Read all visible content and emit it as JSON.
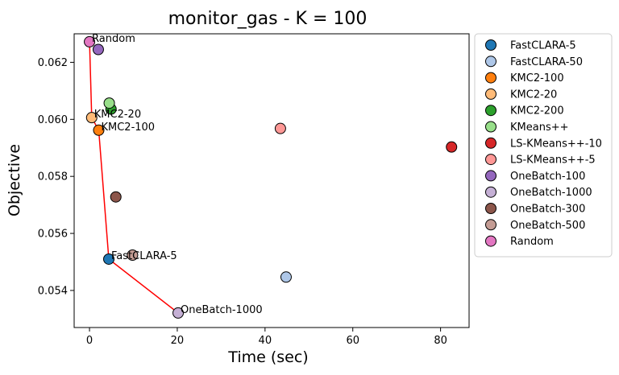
{
  "chart_data": {
    "type": "scatter",
    "title": "monitor_gas - K = 100",
    "xlabel": "Time (sec)",
    "ylabel": "Objective",
    "xlim": [
      -3.5,
      86.5
    ],
    "ylim": [
      0.0527,
      0.063
    ],
    "xticks": [
      0,
      20,
      40,
      60,
      80
    ],
    "xtick_labels": [
      "0",
      "20",
      "40",
      "60",
      "80"
    ],
    "yticks": [
      0.054,
      0.056,
      0.058,
      0.06,
      0.062
    ],
    "ytick_labels": [
      "0.054",
      "0.056",
      "0.058",
      "0.060",
      "0.062"
    ],
    "grid": false,
    "legend_position": "outside-right",
    "series": [
      {
        "name": "FastCLARA-5",
        "color": "#1f77b4",
        "x": 4.4,
        "y": 0.0551
      },
      {
        "name": "FastCLARA-50",
        "color": "#aec7e8",
        "x": 44.8,
        "y": 0.05447
      },
      {
        "name": "KMC2-100",
        "color": "#ff7f0e",
        "x": 2.1,
        "y": 0.05962
      },
      {
        "name": "KMC2-20",
        "color": "#ffbb78",
        "x": 0.5,
        "y": 0.06006
      },
      {
        "name": "KMC2-200",
        "color": "#2ca02c",
        "x": 4.9,
        "y": 0.06036
      },
      {
        "name": "KMeans++",
        "color": "#98df8a",
        "x": 4.5,
        "y": 0.06057
      },
      {
        "name": "LS-KMeans++-10",
        "color": "#d62728",
        "x": 82.5,
        "y": 0.05903
      },
      {
        "name": "LS-KMeans++-5",
        "color": "#ff9896",
        "x": 43.5,
        "y": 0.05968
      },
      {
        "name": "OneBatch-100",
        "color": "#9467bd",
        "x": 2.0,
        "y": 0.06245
      },
      {
        "name": "OneBatch-1000",
        "color": "#c5b0d5",
        "x": 20.2,
        "y": 0.05321
      },
      {
        "name": "OneBatch-300",
        "color": "#8c564b",
        "x": 6.0,
        "y": 0.05728
      },
      {
        "name": "OneBatch-500",
        "color": "#c49c94",
        "x": 9.8,
        "y": 0.05524
      },
      {
        "name": "Random",
        "color": "#e377c2",
        "x": 0.0,
        "y": 0.06272
      }
    ],
    "frontier": {
      "color": "#ff0000",
      "x": [
        0.0,
        0.5,
        2.1,
        4.4,
        20.2
      ],
      "y": [
        0.06272,
        0.06006,
        0.05962,
        0.0551,
        0.05321
      ]
    },
    "annotations": [
      {
        "text": "Random",
        "x": 0.0,
        "y": 0.06272
      },
      {
        "text": "KMC2-20",
        "x": 0.5,
        "y": 0.06006
      },
      {
        "text": "KMC2-100",
        "x": 2.1,
        "y": 0.05962
      },
      {
        "text": "FastCLARA-5",
        "x": 4.4,
        "y": 0.0551
      },
      {
        "text": "OneBatch-1000",
        "x": 20.2,
        "y": 0.05321
      }
    ]
  }
}
